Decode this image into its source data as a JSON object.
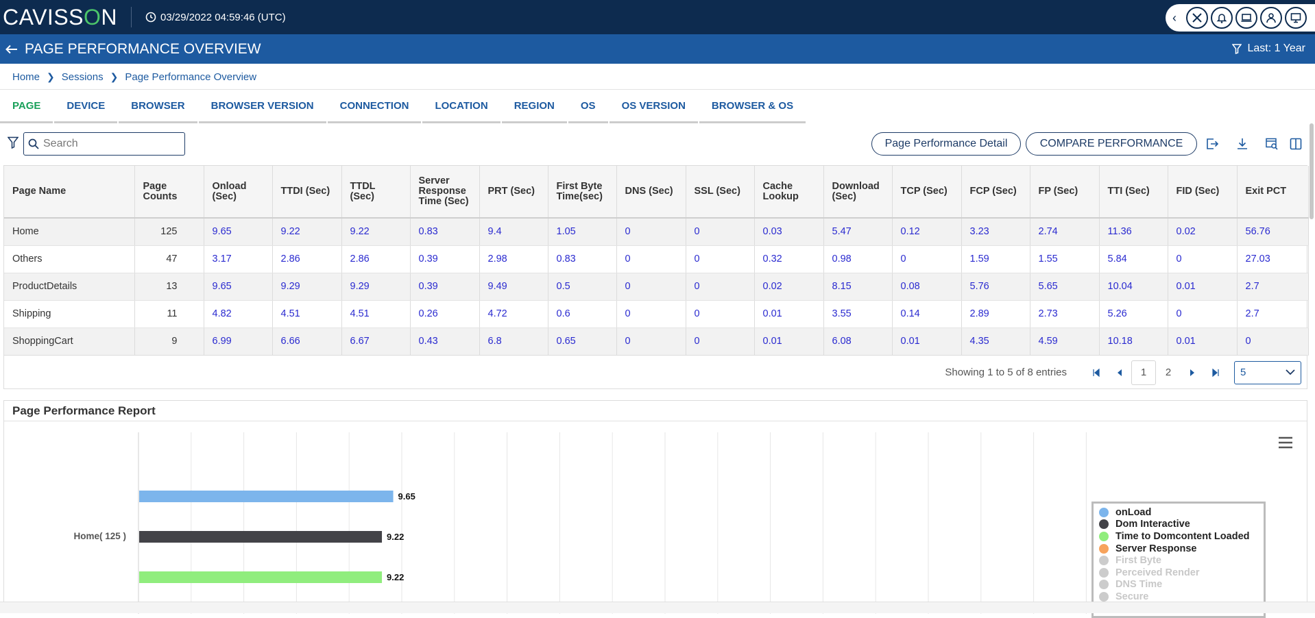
{
  "header": {
    "logo_pre": "CAVISS",
    "logo_o": "O",
    "logo_post": "N",
    "datetime": "03/29/2022 04:59:46 (UTC)"
  },
  "titlebar": {
    "title": "PAGE PERFORMANCE OVERVIEW",
    "time_filter": "Last: 1 Year"
  },
  "breadcrumb": [
    "Home",
    "Sessions",
    "Page Performance Overview"
  ],
  "tabs": [
    "PAGE",
    "DEVICE",
    "BROWSER",
    "BROWSER VERSION",
    "CONNECTION",
    "LOCATION",
    "REGION",
    "OS",
    "OS VERSION",
    "BROWSER & OS"
  ],
  "toolbar": {
    "search_placeholder": "Search",
    "detail_button": "Page Performance Detail",
    "compare_button": "COMPARE PERFORMANCE"
  },
  "table": {
    "columns": [
      "Page Name",
      "Page Counts",
      "Onload (Sec)",
      "TTDI (Sec)",
      "TTDL (Sec)",
      "Server Response Time (Sec)",
      "PRT (Sec)",
      "First Byte Time(sec)",
      "DNS (Sec)",
      "SSL (Sec)",
      "Cache Lookup",
      "Download (Sec)",
      "TCP (Sec)",
      "FCP (Sec)",
      "FP (Sec)",
      "TTI (Sec)",
      "FID (Sec)",
      "Exit PCT"
    ],
    "rows": [
      [
        "Home",
        "125",
        "9.65",
        "9.22",
        "9.22",
        "0.83",
        "9.4",
        "1.05",
        "0",
        "0",
        "0.03",
        "5.47",
        "0.12",
        "3.23",
        "2.74",
        "11.36",
        "0.02",
        "56.76"
      ],
      [
        "Others",
        "47",
        "3.17",
        "2.86",
        "2.86",
        "0.39",
        "2.98",
        "0.83",
        "0",
        "0",
        "0.32",
        "0.98",
        "0",
        "1.59",
        "1.55",
        "5.84",
        "0",
        "27.03"
      ],
      [
        "ProductDetails",
        "13",
        "9.65",
        "9.29",
        "9.29",
        "0.39",
        "9.49",
        "0.5",
        "0",
        "0",
        "0.02",
        "8.15",
        "0.08",
        "5.76",
        "5.65",
        "10.04",
        "0.01",
        "2.7"
      ],
      [
        "Shipping",
        "11",
        "4.82",
        "4.51",
        "4.51",
        "0.26",
        "4.72",
        "0.6",
        "0",
        "0",
        "0.01",
        "3.55",
        "0.14",
        "2.89",
        "2.73",
        "5.26",
        "0",
        "2.7"
      ],
      [
        "ShoppingCart",
        "9",
        "6.99",
        "6.66",
        "6.67",
        "0.43",
        "6.8",
        "0.65",
        "0",
        "0",
        "0.01",
        "6.08",
        "0.01",
        "4.35",
        "4.59",
        "10.18",
        "0.01",
        "0"
      ]
    ],
    "pager_info": "Showing 1 to 5 of 8 entries",
    "pages": [
      "1",
      "2"
    ],
    "per_page": "5"
  },
  "report": {
    "title": "Page Performance Report",
    "category_label": "Home( 125 )",
    "legend": [
      {
        "name": "onLoad",
        "color": "#7cb5ec",
        "active": true
      },
      {
        "name": "Dom Interactive",
        "color": "#434348",
        "active": true
      },
      {
        "name": "Time to Domcontent Loaded",
        "color": "#90ed7d",
        "active": true
      },
      {
        "name": "Server Response",
        "color": "#f7a35c",
        "active": true
      },
      {
        "name": "First Byte",
        "color": "#cccccc",
        "active": false
      },
      {
        "name": "Perceived Render",
        "color": "#cccccc",
        "active": false
      },
      {
        "name": "DNS Time",
        "color": "#cccccc",
        "active": false
      },
      {
        "name": "Secure",
        "color": "#cccccc",
        "active": false
      }
    ]
  },
  "chart_data": {
    "type": "bar",
    "orientation": "horizontal",
    "categories": [
      "Home( 125 )"
    ],
    "series": [
      {
        "name": "onLoad",
        "values": [
          9.65
        ],
        "color": "#7cb5ec"
      },
      {
        "name": "Dom Interactive",
        "values": [
          9.22
        ],
        "color": "#434348"
      },
      {
        "name": "Time to Domcontent Loaded",
        "values": [
          9.22
        ],
        "color": "#90ed7d"
      }
    ],
    "title": "Page Performance Report",
    "xlim": [
      0,
      36
    ],
    "grid": true,
    "legend_position": "right"
  }
}
